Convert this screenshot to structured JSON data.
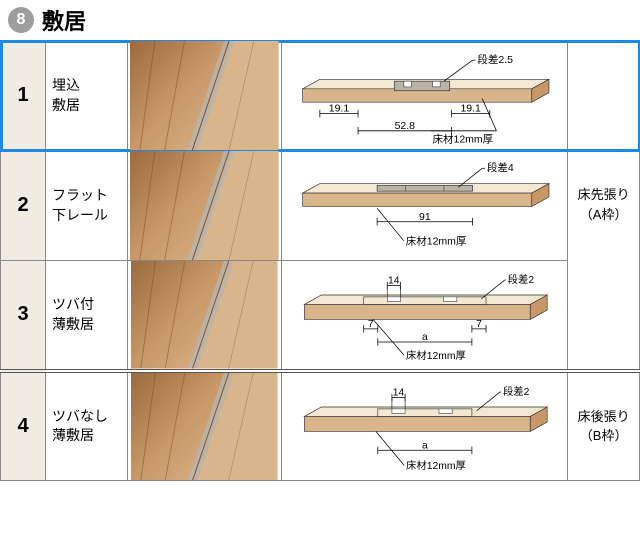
{
  "header": {
    "badge": "8",
    "title": "敷居"
  },
  "colors": {
    "wood_light": "#d9b58c",
    "wood_mid": "#c89868",
    "wood_dark": "#9b6a3e",
    "wood_deep": "#7a4e2a",
    "cream": "#f3e8d2",
    "rail_gray": "#b8b4a8",
    "outline": "#333333",
    "highlight": "#1e88e5",
    "num_bg": "#f0ece4"
  },
  "rows": [
    {
      "num": "1",
      "name_l1": "埋込",
      "name_l2": "敷居",
      "dankasa": "段差2.5",
      "dims": {
        "left": "19.1",
        "right": "19.1",
        "ctr": "52.8",
        "floor": "床材12mm厚"
      },
      "highlight": true
    },
    {
      "num": "2",
      "name_l1": "フラット",
      "name_l2": "下レール",
      "dankasa": "段差4",
      "dims": {
        "ctr": "91",
        "floor": "床材12mm厚"
      }
    },
    {
      "num": "3",
      "name_l1": "ツバ付",
      "name_l2": "薄敷居",
      "dankasa": "段差2",
      "dims": {
        "top": "14",
        "l7": "7",
        "r7": "7",
        "a": "a",
        "floor": "床材12mm厚"
      }
    },
    {
      "num": "4",
      "name_l1": "ツバなし",
      "name_l2": "薄敷居",
      "dankasa": "段差2",
      "dims": {
        "top": "14",
        "a": "a",
        "floor": "床材12mm厚"
      },
      "divider": true
    }
  ],
  "side": {
    "top": {
      "l1": "床先張り",
      "l2": "（A枠）"
    },
    "bot": {
      "l1": "床後張り",
      "l2": "（B枠）"
    }
  }
}
